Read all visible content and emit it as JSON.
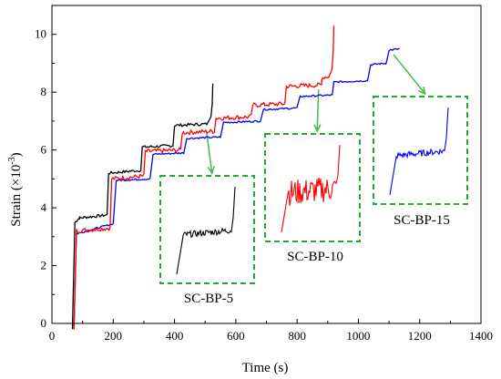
{
  "chart_data": {
    "type": "line",
    "xlabel": "Time (s)",
    "ylabel": "Strain (×10⁻³)",
    "ylabel_base": "Strain (×10",
    "ylabel_exp": "-3",
    "ylabel_close": ")",
    "xlim": [
      0,
      1400
    ],
    "ylim": [
      0,
      11
    ],
    "xticks": [
      0,
      200,
      400,
      600,
      800,
      1000,
      1200,
      1400
    ],
    "yticks": [
      0,
      2,
      4,
      6,
      8,
      10
    ],
    "grid": false,
    "series": [
      {
        "name": "SC-BP-5",
        "color": "#000000",
        "steps": [
          {
            "t0": 75,
            "t1": 90,
            "y": 3.5,
            "y1": 3.65
          },
          {
            "t0": 90,
            "t1": 180,
            "y": 3.65,
            "y1": 3.75
          },
          {
            "t0": 185,
            "t1": 290,
            "y": 5.2,
            "y1": 5.3
          },
          {
            "t0": 295,
            "t1": 395,
            "y": 6.1,
            "y1": 6.15
          },
          {
            "t0": 400,
            "t1": 505,
            "y": 6.85,
            "y1": 6.9
          }
        ],
        "failure": {
          "t": 525,
          "y": 8.3
        }
      },
      {
        "name": "SC-BP-10",
        "color": "#ff0000",
        "steps": [
          {
            "t0": 80,
            "t1": 190,
            "y": 3.2,
            "y1": 3.3
          },
          {
            "t0": 195,
            "t1": 300,
            "y": 5.0,
            "y1": 5.1
          },
          {
            "t0": 305,
            "t1": 420,
            "y": 5.95,
            "y1": 6.0
          },
          {
            "t0": 425,
            "t1": 530,
            "y": 6.6,
            "y1": 6.65
          },
          {
            "t0": 535,
            "t1": 650,
            "y": 7.1,
            "y1": 7.15
          },
          {
            "t0": 655,
            "t1": 760,
            "y": 7.55,
            "y1": 7.6
          },
          {
            "t0": 765,
            "t1": 880,
            "y": 8.2,
            "y1": 8.25
          },
          {
            "t0": 880,
            "t1": 905,
            "y": 8.5,
            "y1": 8.55
          }
        ],
        "failure": {
          "t": 920,
          "y": 10.3
        }
      },
      {
        "name": "SC-BP-15",
        "color": "#0000ff",
        "steps": [
          {
            "t0": 80,
            "t1": 200,
            "y": 3.1,
            "y1": 3.45
          },
          {
            "t0": 210,
            "t1": 320,
            "y": 4.95,
            "y1": 5.0
          },
          {
            "t0": 330,
            "t1": 430,
            "y": 5.85,
            "y1": 5.9
          },
          {
            "t0": 440,
            "t1": 550,
            "y": 6.4,
            "y1": 6.45
          },
          {
            "t0": 560,
            "t1": 680,
            "y": 6.95,
            "y1": 7.0
          },
          {
            "t0": 690,
            "t1": 800,
            "y": 7.4,
            "y1": 7.45
          },
          {
            "t0": 810,
            "t1": 915,
            "y": 7.85,
            "y1": 7.9
          },
          {
            "t0": 920,
            "t1": 1030,
            "y": 8.35,
            "y1": 8.4
          },
          {
            "t0": 1040,
            "t1": 1090,
            "y": 8.95,
            "y1": 9.0
          },
          {
            "t0": 1100,
            "t1": 1135,
            "y": 9.45,
            "y1": 9.5
          }
        ],
        "failure": {
          "t": 1135,
          "y": 9.5
        }
      }
    ],
    "insets": [
      {
        "label": "SC-BP-5",
        "series": 0,
        "arrow_from": {
          "t": 505,
          "y": 6.6
        }
      },
      {
        "label": "SC-BP-10",
        "series": 1,
        "arrow_from": {
          "t": 870,
          "y": 8.1
        }
      },
      {
        "label": "SC-BP-15",
        "series": 2,
        "arrow_from": {
          "t": 1115,
          "y": 9.3
        }
      }
    ],
    "inset_box_color": "#22aa33",
    "arrow_color": "#44bb44"
  }
}
